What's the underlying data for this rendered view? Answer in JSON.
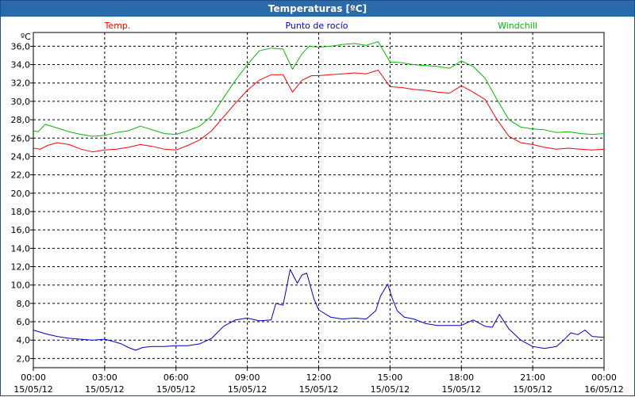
{
  "window": {
    "title": "Temperaturas [ºC]"
  },
  "chart_data": {
    "type": "line",
    "title": "Temperaturas [ºC]",
    "ylabel": "ºC",
    "xlabel": "",
    "ylim": [
      1.0,
      37.5
    ],
    "y_ticks": [
      "2,0",
      "4,0",
      "6,0",
      "8,0",
      "10,0",
      "12,0",
      "14,0",
      "16,0",
      "18,0",
      "20,0",
      "22,0",
      "24,0",
      "26,0",
      "28,0",
      "30,0",
      "32,0",
      "34,0",
      "36,0"
    ],
    "x_ticks": [
      {
        "time": "00:00",
        "date": "15/05/12"
      },
      {
        "time": "03:00",
        "date": "15/05/12"
      },
      {
        "time": "06:00",
        "date": "15/05/12"
      },
      {
        "time": "09:00",
        "date": "15/05/12"
      },
      {
        "time": "12:00",
        "date": "15/05/12"
      },
      {
        "time": "15:00",
        "date": "15/05/12"
      },
      {
        "time": "18:00",
        "date": "15/05/12"
      },
      {
        "time": "21:00",
        "date": "15/05/12"
      },
      {
        "time": "00:00",
        "date": "16/05/12"
      }
    ],
    "x_unit": "hours",
    "grid": true,
    "series": [
      {
        "name": "Temp.",
        "color": "#ff0000",
        "points": [
          [
            0,
            24.9
          ],
          [
            0.3,
            24.8
          ],
          [
            0.6,
            25.2
          ],
          [
            1,
            25.5
          ],
          [
            1.5,
            25.3
          ],
          [
            2,
            24.8
          ],
          [
            2.5,
            24.5
          ],
          [
            3,
            24.7
          ],
          [
            3.5,
            24.8
          ],
          [
            4,
            25.0
          ],
          [
            4.5,
            25.3
          ],
          [
            5,
            25.1
          ],
          [
            5.5,
            24.8
          ],
          [
            6,
            24.7
          ],
          [
            6.5,
            25.2
          ],
          [
            7,
            25.8
          ],
          [
            7.5,
            26.8
          ],
          [
            8,
            28.3
          ],
          [
            8.5,
            29.8
          ],
          [
            9,
            31.2
          ],
          [
            9.5,
            32.3
          ],
          [
            10,
            32.9
          ],
          [
            10.5,
            32.9
          ],
          [
            10.9,
            31.0
          ],
          [
            11.3,
            32.3
          ],
          [
            11.7,
            32.8
          ],
          [
            12,
            32.8
          ],
          [
            12.5,
            32.9
          ],
          [
            13,
            33.0
          ],
          [
            13.5,
            33.1
          ],
          [
            14,
            33.0
          ],
          [
            14.5,
            33.4
          ],
          [
            15,
            31.6
          ],
          [
            15.5,
            31.5
          ],
          [
            16,
            31.3
          ],
          [
            16.5,
            31.2
          ],
          [
            17,
            31.0
          ],
          [
            17.5,
            30.9
          ],
          [
            18,
            31.7
          ],
          [
            18.5,
            31.0
          ],
          [
            19,
            30.2
          ],
          [
            19.5,
            28.0
          ],
          [
            20,
            26.2
          ],
          [
            20.5,
            25.5
          ],
          [
            21,
            25.3
          ],
          [
            21.5,
            25.0
          ],
          [
            22,
            24.8
          ],
          [
            22.5,
            24.9
          ],
          [
            23,
            24.8
          ],
          [
            23.5,
            24.7
          ],
          [
            24,
            24.8
          ]
        ]
      },
      {
        "name": "Punto de rocío",
        "color": "#0000cc",
        "points": [
          [
            0,
            5.1
          ],
          [
            0.5,
            4.7
          ],
          [
            1,
            4.4
          ],
          [
            1.5,
            4.2
          ],
          [
            2,
            4.1
          ],
          [
            2.5,
            4.0
          ],
          [
            3,
            4.1
          ],
          [
            3.3,
            3.9
          ],
          [
            3.7,
            3.6
          ],
          [
            4,
            3.2
          ],
          [
            4.3,
            2.9
          ],
          [
            4.6,
            3.2
          ],
          [
            5,
            3.3
          ],
          [
            5.5,
            3.3
          ],
          [
            6,
            3.4
          ],
          [
            6.5,
            3.4
          ],
          [
            7,
            3.6
          ],
          [
            7.5,
            4.2
          ],
          [
            8,
            5.5
          ],
          [
            8.5,
            6.2
          ],
          [
            9,
            6.4
          ],
          [
            9.5,
            6.1
          ],
          [
            10,
            6.2
          ],
          [
            10.2,
            8.0
          ],
          [
            10.5,
            7.8
          ],
          [
            10.8,
            11.7
          ],
          [
            11.1,
            10.2
          ],
          [
            11.3,
            11.1
          ],
          [
            11.5,
            11.3
          ],
          [
            11.8,
            8.5
          ],
          [
            12,
            7.3
          ],
          [
            12.5,
            6.5
          ],
          [
            13,
            6.3
          ],
          [
            13.5,
            6.4
          ],
          [
            14,
            6.3
          ],
          [
            14.4,
            7.2
          ],
          [
            14.6,
            8.8
          ],
          [
            14.9,
            10.1
          ],
          [
            15.1,
            8.5
          ],
          [
            15.3,
            7.2
          ],
          [
            15.6,
            6.5
          ],
          [
            16,
            6.3
          ],
          [
            16.5,
            5.8
          ],
          [
            17,
            5.6
          ],
          [
            17.5,
            5.6
          ],
          [
            18,
            5.6
          ],
          [
            18.5,
            6.2
          ],
          [
            19,
            5.5
          ],
          [
            19.3,
            5.4
          ],
          [
            19.6,
            6.8
          ],
          [
            20,
            5.2
          ],
          [
            20.5,
            4.0
          ],
          [
            21,
            3.3
          ],
          [
            21.5,
            3.1
          ],
          [
            22,
            3.3
          ],
          [
            22.3,
            4.0
          ],
          [
            22.6,
            4.8
          ],
          [
            22.9,
            4.6
          ],
          [
            23.2,
            5.1
          ],
          [
            23.5,
            4.4
          ],
          [
            24,
            4.3
          ]
        ]
      },
      {
        "name": "Windchill",
        "color": "#00bb00",
        "points": [
          [
            0,
            26.8
          ],
          [
            0.2,
            26.7
          ],
          [
            0.5,
            27.5
          ],
          [
            1,
            27.1
          ],
          [
            1.5,
            26.7
          ],
          [
            2,
            26.4
          ],
          [
            2.5,
            26.2
          ],
          [
            3,
            26.3
          ],
          [
            3.5,
            26.6
          ],
          [
            4,
            26.8
          ],
          [
            4.5,
            27.3
          ],
          [
            5,
            26.9
          ],
          [
            5.5,
            26.5
          ],
          [
            6,
            26.4
          ],
          [
            6.5,
            26.8
          ],
          [
            7,
            27.3
          ],
          [
            7.5,
            28.4
          ],
          [
            8,
            30.4
          ],
          [
            8.5,
            32.3
          ],
          [
            9,
            34.0
          ],
          [
            9.5,
            35.5
          ],
          [
            10,
            35.8
          ],
          [
            10.5,
            35.7
          ],
          [
            10.9,
            33.5
          ],
          [
            11.3,
            35.2
          ],
          [
            11.6,
            36.0
          ],
          [
            12,
            35.9
          ],
          [
            12.5,
            36.0
          ],
          [
            13,
            36.2
          ],
          [
            13.5,
            36.3
          ],
          [
            14,
            36.1
          ],
          [
            14.5,
            36.5
          ],
          [
            15,
            34.3
          ],
          [
            15.5,
            34.2
          ],
          [
            16,
            34.0
          ],
          [
            16.5,
            33.9
          ],
          [
            17,
            33.8
          ],
          [
            17.5,
            33.6
          ],
          [
            18,
            34.4
          ],
          [
            18.5,
            33.8
          ],
          [
            19,
            32.5
          ],
          [
            19.5,
            30.2
          ],
          [
            20,
            28.0
          ],
          [
            20.5,
            27.2
          ],
          [
            21,
            27.0
          ],
          [
            21.5,
            26.9
          ],
          [
            22,
            26.6
          ],
          [
            22.5,
            26.7
          ],
          [
            23,
            26.5
          ],
          [
            23.5,
            26.4
          ],
          [
            24,
            26.5
          ]
        ]
      }
    ]
  }
}
